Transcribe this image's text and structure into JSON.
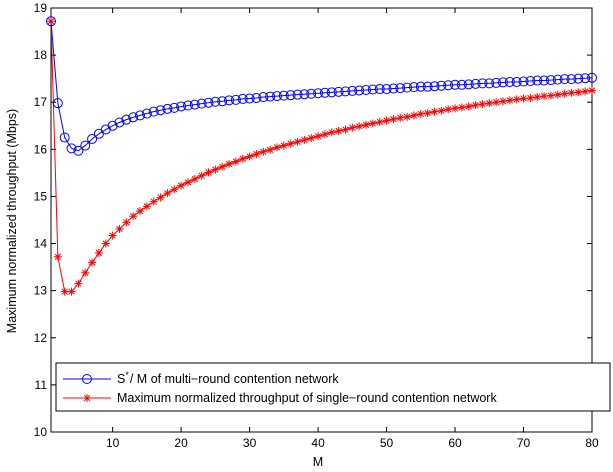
{
  "chart_data": {
    "type": "line",
    "title": "",
    "xlabel": "M",
    "ylabel": "Maximum normalized throughput (Mbps)",
    "xlim": [
      1,
      80
    ],
    "ylim": [
      10,
      19
    ],
    "xticks": [
      10,
      20,
      30,
      40,
      50,
      60,
      70,
      80
    ],
    "yticks": [
      10,
      11,
      12,
      13,
      14,
      15,
      16,
      17,
      18,
      19
    ],
    "grid": false,
    "legend_position": "bottom-left",
    "series": [
      {
        "name": "S* / M of multi-round contention network",
        "legend_main": "S",
        "legend_sup": "*",
        "legend_rest": "/ M of multi−round contention network",
        "color": "#0000ff",
        "marker": "circle",
        "x": [
          1,
          2,
          3,
          4,
          5,
          6,
          7,
          8,
          9,
          10,
          11,
          12,
          13,
          14,
          15,
          16,
          17,
          18,
          19,
          20,
          21,
          22,
          23,
          24,
          25,
          26,
          27,
          28,
          29,
          30,
          31,
          32,
          33,
          34,
          35,
          36,
          37,
          38,
          39,
          40,
          41,
          42,
          43,
          44,
          45,
          46,
          47,
          48,
          49,
          50,
          51,
          52,
          53,
          54,
          55,
          56,
          57,
          58,
          59,
          60,
          61,
          62,
          63,
          64,
          65,
          66,
          67,
          68,
          69,
          70,
          71,
          72,
          73,
          74,
          75,
          76,
          77,
          78,
          79,
          80
        ],
        "y": [
          18.72,
          16.98,
          16.25,
          16.02,
          15.97,
          16.08,
          16.22,
          16.33,
          16.42,
          16.5,
          16.57,
          16.63,
          16.68,
          16.72,
          16.76,
          16.8,
          16.83,
          16.86,
          16.88,
          16.91,
          16.93,
          16.95,
          16.97,
          16.99,
          17.01,
          17.02,
          17.04,
          17.05,
          17.07,
          17.08,
          17.09,
          17.11,
          17.12,
          17.13,
          17.14,
          17.15,
          17.16,
          17.17,
          17.18,
          17.19,
          17.2,
          17.21,
          17.22,
          17.23,
          17.24,
          17.25,
          17.26,
          17.27,
          17.28,
          17.28,
          17.29,
          17.3,
          17.31,
          17.32,
          17.33,
          17.33,
          17.34,
          17.35,
          17.36,
          17.37,
          17.37,
          17.38,
          17.39,
          17.4,
          17.4,
          17.41,
          17.42,
          17.43,
          17.43,
          17.44,
          17.45,
          17.46,
          17.46,
          17.47,
          17.48,
          17.49,
          17.49,
          17.5,
          17.51,
          17.52
        ]
      },
      {
        "name": "Maximum normalized throughput of single−round contention network",
        "color": "#ff0000",
        "marker": "asterisk",
        "x": [
          1,
          2,
          3,
          4,
          5,
          6,
          7,
          8,
          9,
          10,
          11,
          12,
          13,
          14,
          15,
          16,
          17,
          18,
          19,
          20,
          21,
          22,
          23,
          24,
          25,
          26,
          27,
          28,
          29,
          30,
          31,
          32,
          33,
          34,
          35,
          36,
          37,
          38,
          39,
          40,
          41,
          42,
          43,
          44,
          45,
          46,
          47,
          48,
          49,
          50,
          51,
          52,
          53,
          54,
          55,
          56,
          57,
          58,
          59,
          60,
          61,
          62,
          63,
          64,
          65,
          66,
          67,
          68,
          69,
          70,
          71,
          72,
          73,
          74,
          75,
          76,
          77,
          78,
          79,
          80
        ],
        "y": [
          18.72,
          13.72,
          12.98,
          12.98,
          13.15,
          13.38,
          13.6,
          13.8,
          14.0,
          14.17,
          14.31,
          14.45,
          14.58,
          14.69,
          14.79,
          14.89,
          14.98,
          15.07,
          15.15,
          15.23,
          15.3,
          15.37,
          15.44,
          15.51,
          15.57,
          15.63,
          15.69,
          15.74,
          15.8,
          15.85,
          15.9,
          15.95,
          15.99,
          16.04,
          16.08,
          16.12,
          16.16,
          16.2,
          16.24,
          16.28,
          16.32,
          16.36,
          16.39,
          16.42,
          16.46,
          16.49,
          16.52,
          16.55,
          16.58,
          16.61,
          16.64,
          16.67,
          16.69,
          16.72,
          16.75,
          16.77,
          16.8,
          16.82,
          16.85,
          16.87,
          16.89,
          16.91,
          16.94,
          16.96,
          16.98,
          17.0,
          17.02,
          17.04,
          17.06,
          17.08,
          17.09,
          17.11,
          17.13,
          17.14,
          17.16,
          17.18,
          17.2,
          17.21,
          17.23,
          17.25
        ]
      }
    ]
  }
}
